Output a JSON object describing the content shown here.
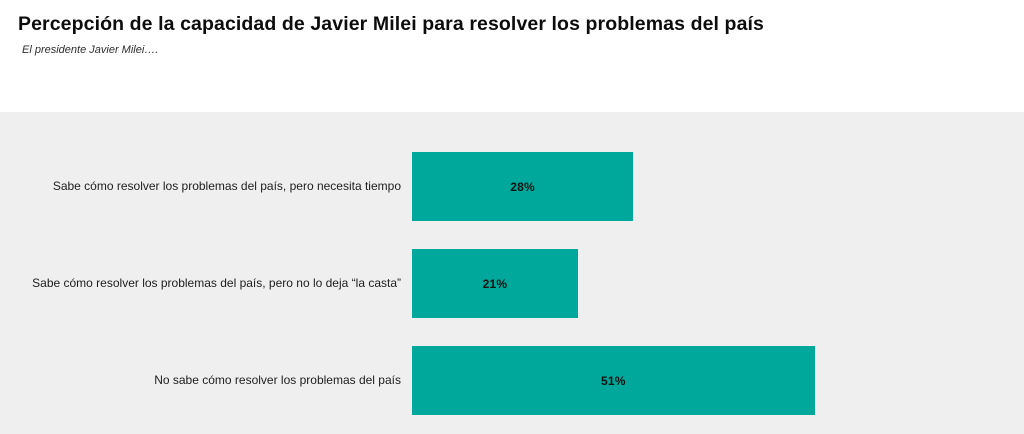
{
  "chart_data": {
    "type": "bar",
    "orientation": "horizontal",
    "title": "Percepción de la capacidad de Javier Milei para resolver los problemas del país",
    "subtitle": "El presidente Javier Milei….",
    "categories": [
      "Sabe cómo resolver los problemas del país, pero necesita tiempo",
      "Sabe cómo resolver los problemas del país, pero no lo deja “la casta”",
      "No sabe cómo resolver los problemas del país"
    ],
    "values": [
      28,
      21,
      51
    ],
    "value_labels": [
      "28%",
      "21%",
      "51%"
    ],
    "unit": "%",
    "xlim": [
      0,
      77.5
    ],
    "grid": false,
    "legend": false,
    "axes_visible": false,
    "value_labels_position": "center-of-bar",
    "bar_color": "#00A79B",
    "plot_background": "#EFEFEF",
    "page_background": "#FFFFFF",
    "title_color": "#0D0D0D",
    "category_label_color": "#1D1D1D",
    "value_label_color": "#111111"
  }
}
